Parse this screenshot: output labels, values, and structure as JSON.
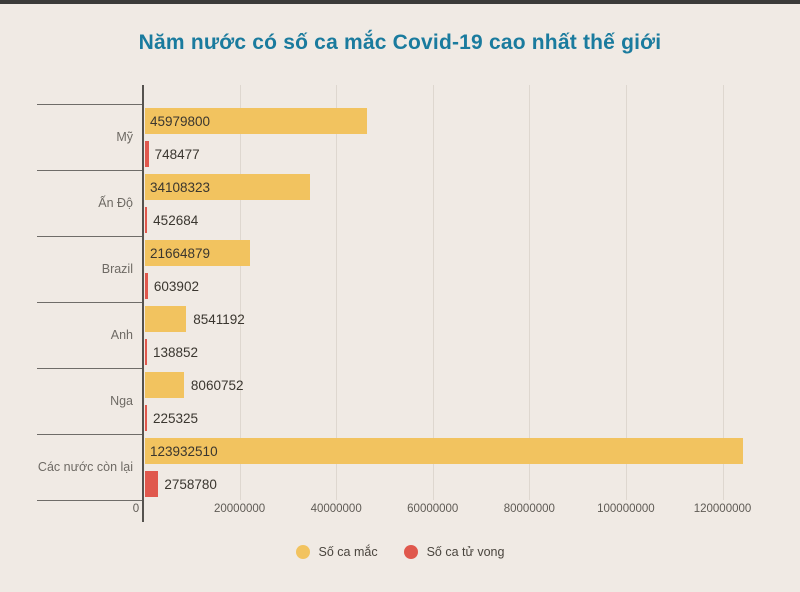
{
  "page": {
    "background_color": "#f0eae4",
    "top_strip_color": "#3b3b39"
  },
  "chart_data": {
    "type": "bar",
    "orientation": "horizontal",
    "title": "Năm nước có số ca mắc Covid-19 cao nhất thế giới",
    "title_color": "#1a7b9e",
    "categories": [
      "Mỹ",
      "Ấn Độ",
      "Brazil",
      "Anh",
      "Nga",
      "Các nước còn lại"
    ],
    "series": [
      {
        "name": "Số ca mắc",
        "color": "#f2c35f",
        "values": [
          45979800,
          34108323,
          21664879,
          8541192,
          8060752,
          123932510
        ]
      },
      {
        "name": "Số ca tử vong",
        "color": "#e0584d",
        "values": [
          748477,
          452684,
          603902,
          138852,
          225325,
          2758780
        ]
      }
    ],
    "x_ticks": [
      0,
      20000000,
      40000000,
      60000000,
      80000000,
      100000000,
      120000000
    ],
    "xlim": [
      0,
      128800000
    ],
    "grid": true,
    "legend_position": "bottom"
  }
}
